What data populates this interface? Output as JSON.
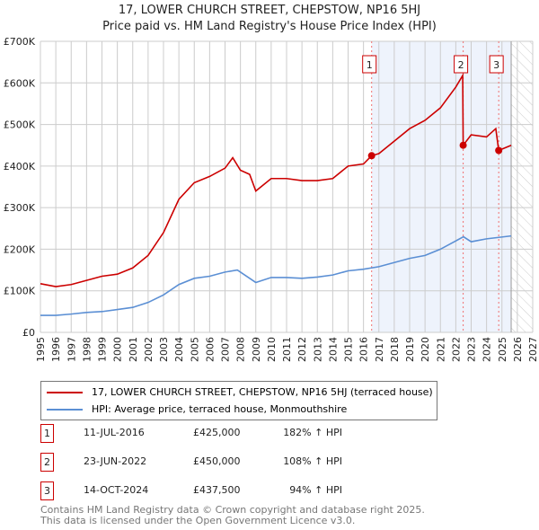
{
  "title": "17, LOWER CHURCH STREET, CHEPSTOW, NP16 5HJ",
  "subtitle": "Price paid vs. HM Land Registry's House Price Index (HPI)",
  "chart_data": {
    "type": "line",
    "xlim": [
      1995,
      2027
    ],
    "ylim": [
      0,
      700000
    ],
    "yticks": [
      0,
      100000,
      200000,
      300000,
      400000,
      500000,
      600000,
      700000
    ],
    "ytick_labels": [
      "£0",
      "£100K",
      "£200K",
      "£300K",
      "£400K",
      "£500K",
      "£600K",
      "£700K"
    ],
    "xtick_labels": [
      "1995",
      "1996",
      "1997",
      "1998",
      "1999",
      "2000",
      "2001",
      "2002",
      "2003",
      "2004",
      "2005",
      "2006",
      "2007",
      "2008",
      "2009",
      "2010",
      "2011",
      "2012",
      "2013",
      "2014",
      "2015",
      "2016",
      "2017",
      "2018",
      "2019",
      "2020",
      "2021",
      "2022",
      "2023",
      "2024",
      "2025",
      "2026",
      "2027"
    ],
    "data_end": 2025.6,
    "series": [
      {
        "name": "17, LOWER CHURCH STREET, CHEPSTOW, NP16 5HJ (terraced house)",
        "color": "#cc0000",
        "x": [
          1995,
          1996,
          1997,
          1998,
          1999,
          2000,
          2001,
          2002,
          2003,
          2004,
          2005,
          2006,
          2007,
          2007.5,
          2008,
          2008.6,
          2009,
          2010,
          2011,
          2012,
          2013,
          2014,
          2015,
          2016,
          2016.53,
          2017,
          2018,
          2019,
          2020,
          2021,
          2022,
          2022.45,
          2022.48,
          2023,
          2024,
          2024.6,
          2024.79,
          2025.6
        ],
        "y": [
          117000,
          110000,
          115000,
          125000,
          135000,
          140000,
          155000,
          185000,
          240000,
          320000,
          360000,
          375000,
          395000,
          420000,
          390000,
          380000,
          340000,
          370000,
          370000,
          365000,
          365000,
          370000,
          400000,
          405000,
          425000,
          430000,
          460000,
          490000,
          510000,
          540000,
          590000,
          618000,
          450000,
          475000,
          470000,
          490000,
          437500,
          450000
        ]
      },
      {
        "name": "HPI: Average price, terraced house, Monmouthshire",
        "color": "#5b8fd4",
        "x": [
          1995,
          1996,
          1997,
          1998,
          1999,
          2000,
          2001,
          2002,
          2003,
          2004,
          2005,
          2006,
          2007,
          2007.8,
          2009,
          2010,
          2011,
          2012,
          2013,
          2014,
          2015,
          2016,
          2017,
          2018,
          2019,
          2020,
          2021,
          2022,
          2022.5,
          2023,
          2024,
          2025.6
        ],
        "y": [
          41000,
          41000,
          44000,
          48000,
          50000,
          55000,
          60000,
          72000,
          90000,
          115000,
          130000,
          135000,
          145000,
          150000,
          120000,
          132000,
          132000,
          130000,
          133000,
          138000,
          148000,
          152000,
          158000,
          168000,
          178000,
          185000,
          200000,
          220000,
          230000,
          218000,
          225000,
          232000
        ]
      }
    ],
    "sales": [
      {
        "label": "1",
        "x": 2016.53,
        "y": 425000,
        "date": "11-JUL-2016",
        "price": "£425,000",
        "hpi": "182% ↑ HPI"
      },
      {
        "label": "2",
        "x": 2022.48,
        "y": 450000,
        "date": "23-JUN-2022",
        "price": "£450,000",
        "hpi": "108% ↑ HPI"
      },
      {
        "label": "3",
        "x": 2024.79,
        "y": 437500,
        "date": "14-OCT-2024",
        "price": "£437,500",
        "hpi": "94% ↑ HPI"
      }
    ]
  },
  "footer": [
    "Contains HM Land Registry data © Crown copyright and database right 2025.",
    "This data is licensed under the Open Government Licence v3.0."
  ]
}
